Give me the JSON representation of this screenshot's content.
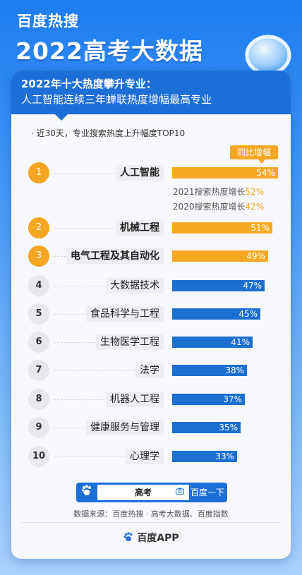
{
  "brand": "百度热搜",
  "main_title": "2022高考大数据",
  "header": {
    "line1": "2022年十大热度攀升专业：",
    "line2": "人工智能连续三年蝉联热度增幅最高专业"
  },
  "subtitle": "· 近30天，专业搜索热度上升幅度TOP10",
  "legend": "同比增幅",
  "chart_data": {
    "type": "bar",
    "orientation": "horizontal",
    "categories": [
      "人工智能",
      "机械工程",
      "电气工程及其自动化",
      "大数据技术",
      "食品科学与工程",
      "生物医学工程",
      "法学",
      "机器人工程",
      "健康服务与管理",
      "心理学"
    ],
    "ranks": [
      "1",
      "2",
      "3",
      "4",
      "5",
      "6",
      "7",
      "8",
      "9",
      "10"
    ],
    "values": [
      54,
      51,
      49,
      47,
      45,
      41,
      38,
      37,
      35,
      33
    ],
    "value_labels": [
      "54%",
      "51%",
      "49%",
      "47%",
      "45%",
      "41%",
      "38%",
      "37%",
      "35%",
      "33%"
    ],
    "highlight_top": 3,
    "colors": {
      "top": "#f7a823",
      "rest": "#1b6fcf"
    }
  },
  "notes": [
    {
      "prefix": "2021搜索热度增长",
      "value": "52%"
    },
    {
      "prefix": "2020搜索热度增长",
      "value": "42%"
    }
  ],
  "search": {
    "query": "高考",
    "button": "百度一下",
    "logo_icon": "paw-icon",
    "camera_icon": "camera-icon"
  },
  "source": "数据来源：百度热搜 · 高考大数据、百度指数",
  "app_name": "百度APP"
}
